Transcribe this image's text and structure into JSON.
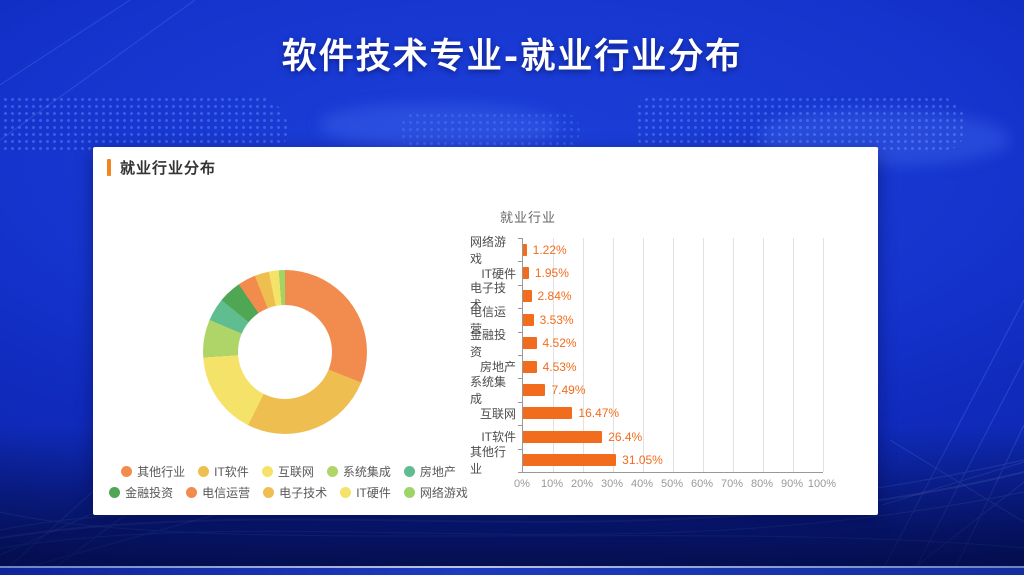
{
  "slide": {
    "title": "软件技术专业-就业行业分布",
    "background_color": "#1230C8",
    "bottom_strip_color": "#1B3BC0"
  },
  "card": {
    "header": "就业行业分布",
    "accent_color": "#F0861E",
    "background": "#FFFFFF"
  },
  "legend": {
    "text_color": "#595959",
    "items_per_row": 5
  },
  "chart_data": [
    {
      "type": "pie",
      "subtype": "donut",
      "title": "",
      "legend_position": "bottom",
      "start_angle_deg": 0,
      "direction": "clockwise",
      "categories": [
        "其他行业",
        "IT软件",
        "互联网",
        "系统集成",
        "房地产",
        "金融投资",
        "电信运营",
        "电子技术",
        "IT硬件",
        "网络游戏"
      ],
      "values": [
        31.05,
        26.4,
        16.47,
        7.49,
        4.53,
        4.52,
        3.53,
        2.84,
        1.95,
        1.22
      ],
      "colors": [
        "#F28C4E",
        "#EFBE50",
        "#F5E269",
        "#AFD468",
        "#5FBD8F",
        "#4FA653",
        "#F28C4E",
        "#EFBE50",
        "#F5E269",
        "#9ED564"
      ]
    },
    {
      "type": "bar",
      "orientation": "horizontal",
      "title": "就业行业",
      "categories": [
        "网络游戏",
        "IT硬件",
        "电子技术",
        "电信运营",
        "金融投资",
        "房地产",
        "系统集成",
        "互联网",
        "IT软件",
        "其他行业"
      ],
      "values": [
        1.22,
        1.95,
        2.84,
        3.53,
        4.52,
        4.53,
        7.49,
        16.47,
        26.4,
        31.05
      ],
      "value_labels": [
        "1.22%",
        "1.95%",
        "2.84%",
        "3.53%",
        "4.52%",
        "4.53%",
        "7.49%",
        "16.47%",
        "26.4%",
        "31.05%"
      ],
      "xlim": [
        0,
        100
      ],
      "x_ticks": [
        "0%",
        "10%",
        "20%",
        "30%",
        "40%",
        "50%",
        "60%",
        "70%",
        "80%",
        "90%",
        "100%"
      ],
      "grid": true,
      "bar_color": "#F26C1D",
      "value_label_color": "#F26C1D",
      "category_label_color": "#4D4D4D",
      "tick_label_color": "#999999",
      "axis_color": "#999999",
      "grid_color": "#E2E2E2"
    }
  ]
}
